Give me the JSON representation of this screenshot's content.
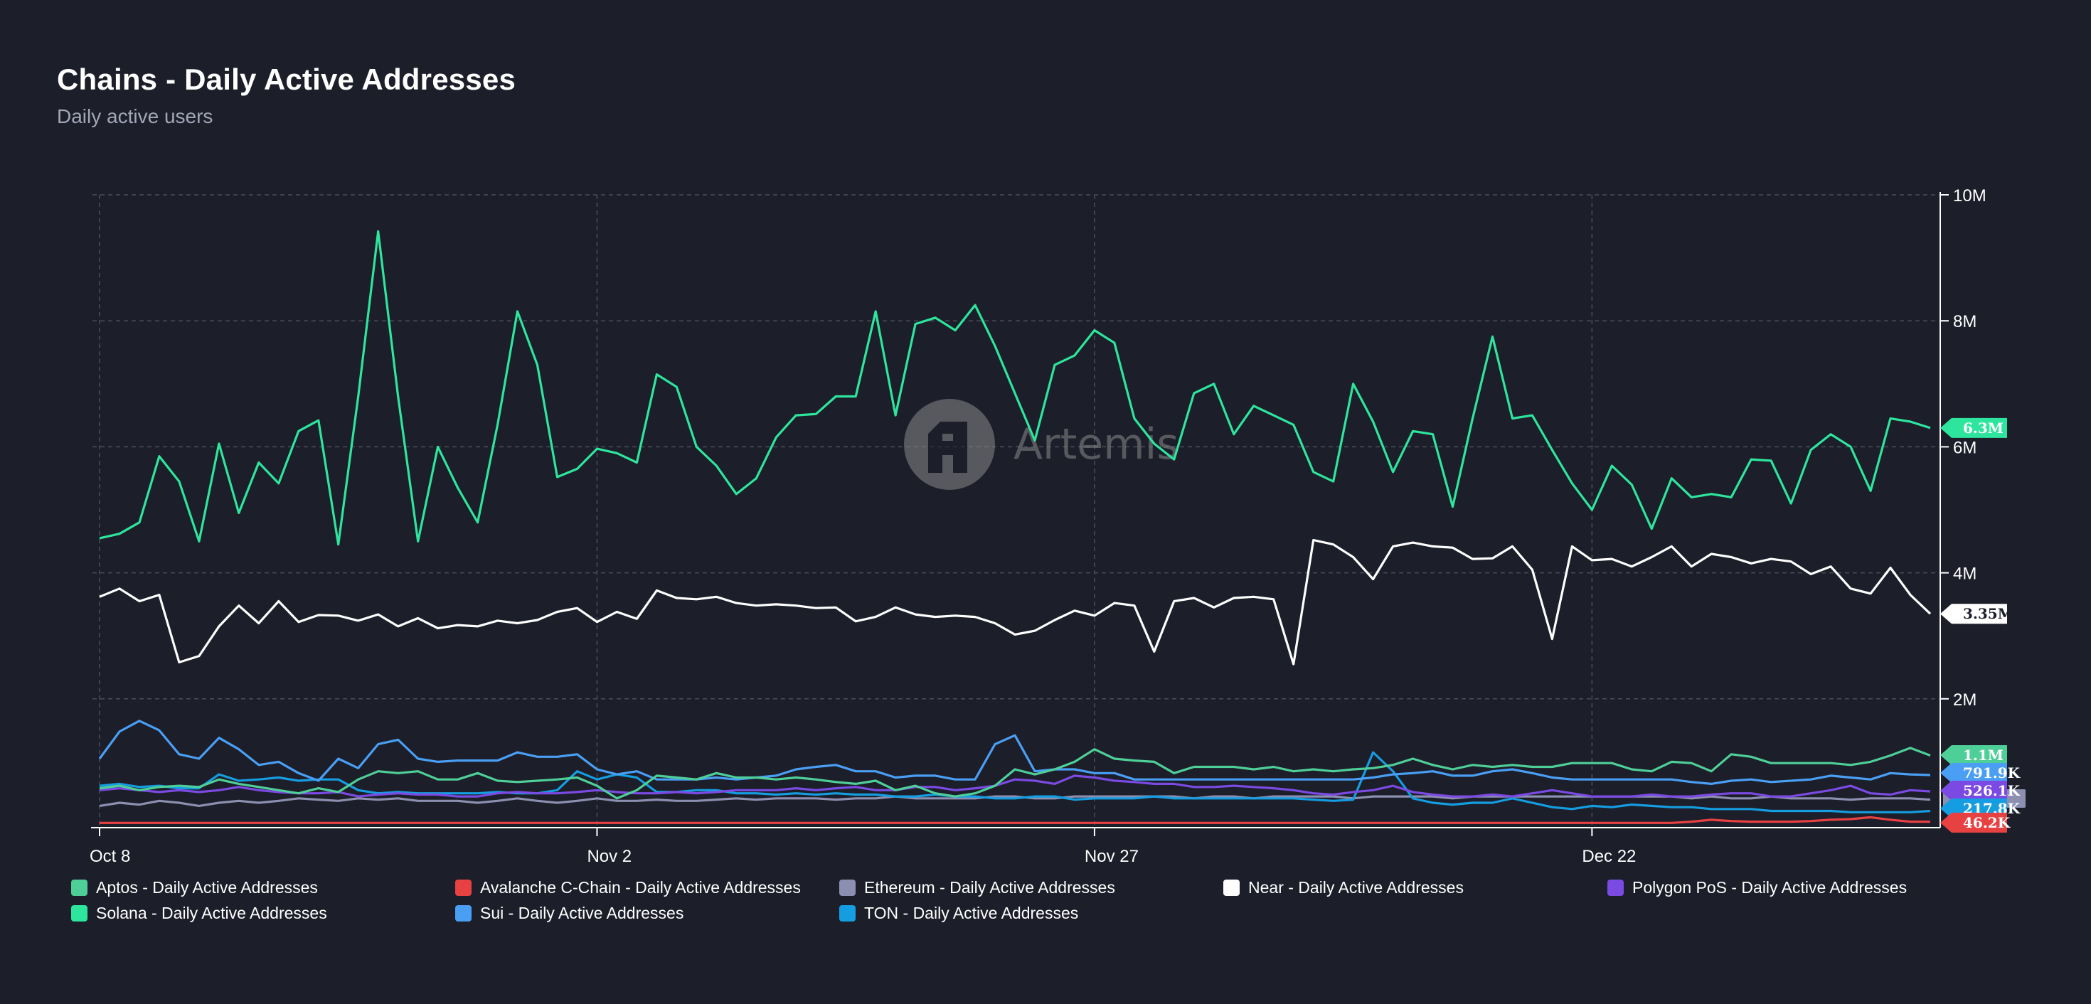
{
  "header": {
    "title": "Chains - Daily Active Addresses",
    "subtitle": "Daily active users"
  },
  "watermark": {
    "text": "Artemis"
  },
  "chart_data": {
    "type": "line",
    "title": "Chains - Daily Active Addresses",
    "subtitle": "Daily active users",
    "xlabel": "",
    "ylabel": "",
    "grid": true,
    "ylim": [
      0,
      10000000
    ],
    "x_ticks": [
      {
        "label": "Oct 8",
        "index": 0
      },
      {
        "label": "Nov 2",
        "index": 25
      },
      {
        "label": "Nov 27",
        "index": 50
      },
      {
        "label": "Dec 22",
        "index": 75
      }
    ],
    "y_ticks": [
      {
        "label": "10M",
        "value": 10000000
      },
      {
        "label": "8M",
        "value": 8000000
      },
      {
        "label": "6M",
        "value": 6000000
      },
      {
        "label": "4M",
        "value": 4000000
      },
      {
        "label": "2M",
        "value": 2000000
      }
    ],
    "series": [
      {
        "name": "Solana - Daily Active Addresses",
        "color": "#2ee59d",
        "end_label": "6.3M",
        "values": [
          4.55,
          4.62,
          4.8,
          5.85,
          5.45,
          4.5,
          6.05,
          4.95,
          5.75,
          5.42,
          6.25,
          6.42,
          4.45,
          6.8,
          9.42,
          6.8,
          4.5,
          6.0,
          5.35,
          4.8,
          6.35,
          8.15,
          7.3,
          5.52,
          5.65,
          5.97,
          5.9,
          5.75,
          7.15,
          6.95,
          6.0,
          5.7,
          5.25,
          5.5,
          6.15,
          6.5,
          6.52,
          6.8,
          6.8,
          8.15,
          6.5,
          7.95,
          8.05,
          7.85,
          8.25,
          7.6,
          6.85,
          6.1,
          7.3,
          7.45,
          7.85,
          7.65,
          6.45,
          6.05,
          5.8,
          6.85,
          7.0,
          6.2,
          6.65,
          6.5,
          6.35,
          5.6,
          5.45,
          7.0,
          6.4,
          5.6,
          6.25,
          6.2,
          5.05,
          6.45,
          7.75,
          6.45,
          6.5,
          5.95,
          5.42,
          5.0,
          5.7,
          5.4,
          4.7,
          5.5,
          5.2,
          5.25,
          5.2,
          5.8,
          5.78,
          5.1,
          5.95,
          6.2,
          6.0,
          5.3,
          6.45,
          6.4,
          6.3
        ]
      },
      {
        "name": "Near - Daily Active Addresses",
        "color": "#ffffff",
        "end_label": "3.35M",
        "values": [
          3.62,
          3.75,
          3.55,
          3.65,
          2.58,
          2.68,
          3.15,
          3.48,
          3.2,
          3.55,
          3.22,
          3.33,
          3.32,
          3.24,
          3.34,
          3.15,
          3.28,
          3.12,
          3.17,
          3.15,
          3.24,
          3.2,
          3.25,
          3.38,
          3.44,
          3.22,
          3.38,
          3.27,
          3.72,
          3.6,
          3.58,
          3.62,
          3.52,
          3.48,
          3.5,
          3.48,
          3.44,
          3.45,
          3.23,
          3.3,
          3.45,
          3.34,
          3.3,
          3.32,
          3.3,
          3.2,
          3.02,
          3.08,
          3.25,
          3.4,
          3.32,
          3.52,
          3.48,
          2.75,
          3.55,
          3.6,
          3.45,
          3.6,
          3.62,
          3.58,
          2.55,
          4.52,
          4.45,
          4.25,
          3.9,
          4.42,
          4.48,
          4.42,
          4.4,
          4.22,
          4.23,
          4.42,
          4.05,
          2.95,
          4.42,
          4.2,
          4.22,
          4.1,
          4.25,
          4.42,
          4.1,
          4.3,
          4.25,
          4.15,
          4.22,
          4.18,
          3.98,
          4.1,
          3.75,
          3.67,
          4.08,
          3.65,
          3.35
        ]
      },
      {
        "name": "Aptos - Daily Active Addresses",
        "color": "#4fcf98",
        "end_label": "1.1M",
        "values": [
          0.58,
          0.62,
          0.55,
          0.6,
          0.62,
          0.6,
          0.72,
          0.65,
          0.6,
          0.55,
          0.5,
          0.58,
          0.52,
          0.72,
          0.85,
          0.82,
          0.85,
          0.72,
          0.72,
          0.82,
          0.7,
          0.68,
          0.7,
          0.72,
          0.75,
          0.62,
          0.42,
          0.55,
          0.78,
          0.75,
          0.72,
          0.82,
          0.75,
          0.75,
          0.72,
          0.75,
          0.72,
          0.68,
          0.65,
          0.7,
          0.55,
          0.62,
          0.5,
          0.45,
          0.5,
          0.62,
          0.88,
          0.8,
          0.88,
          1.0,
          1.2,
          1.05,
          1.02,
          1.0,
          0.82,
          0.92,
          0.92,
          0.92,
          0.88,
          0.92,
          0.85,
          0.88,
          0.85,
          0.88,
          0.9,
          0.95,
          1.05,
          0.95,
          0.88,
          0.95,
          0.92,
          0.95,
          0.92,
          0.92,
          0.98,
          0.98,
          0.98,
          0.88,
          0.85,
          1.0,
          0.98,
          0.85,
          1.12,
          1.08,
          0.98,
          0.98,
          0.98,
          0.98,
          0.95,
          1.0,
          1.1,
          1.22,
          1.1
        ]
      },
      {
        "name": "Sui - Daily Active Addresses",
        "color": "#4a9ff5",
        "end_label": "791.9K",
        "values": [
          1.05,
          1.48,
          1.65,
          1.5,
          1.12,
          1.05,
          1.38,
          1.2,
          0.95,
          1.0,
          0.82,
          0.7,
          1.05,
          0.9,
          1.28,
          1.35,
          1.05,
          1.0,
          1.02,
          1.02,
          1.02,
          1.15,
          1.08,
          1.08,
          1.12,
          0.88,
          0.8,
          0.85,
          0.72,
          0.72,
          0.72,
          0.75,
          0.72,
          0.75,
          0.78,
          0.88,
          0.92,
          0.95,
          0.85,
          0.85,
          0.75,
          0.78,
          0.78,
          0.72,
          0.72,
          1.28,
          1.42,
          0.85,
          0.88,
          0.88,
          0.82,
          0.82,
          0.72,
          0.72,
          0.72,
          0.72,
          0.72,
          0.72,
          0.72,
          0.72,
          0.72,
          0.72,
          0.72,
          0.72,
          0.75,
          0.8,
          0.82,
          0.85,
          0.78,
          0.78,
          0.85,
          0.88,
          0.82,
          0.75,
          0.72,
          0.72,
          0.72,
          0.72,
          0.72,
          0.72,
          0.68,
          0.65,
          0.7,
          0.72,
          0.68,
          0.7,
          0.72,
          0.78,
          0.75,
          0.72,
          0.82,
          0.8,
          0.79
        ]
      },
      {
        "name": "Polygon PoS - Daily Active Addresses",
        "color": "#7b4ae2",
        "end_label": "526.1K",
        "values": [
          0.55,
          0.58,
          0.55,
          0.52,
          0.55,
          0.52,
          0.55,
          0.6,
          0.55,
          0.52,
          0.5,
          0.5,
          0.52,
          0.45,
          0.48,
          0.5,
          0.48,
          0.48,
          0.45,
          0.45,
          0.5,
          0.52,
          0.5,
          0.5,
          0.52,
          0.55,
          0.52,
          0.5,
          0.5,
          0.52,
          0.5,
          0.52,
          0.55,
          0.55,
          0.55,
          0.58,
          0.55,
          0.58,
          0.6,
          0.55,
          0.55,
          0.6,
          0.6,
          0.55,
          0.58,
          0.62,
          0.72,
          0.7,
          0.65,
          0.78,
          0.75,
          0.7,
          0.68,
          0.65,
          0.65,
          0.6,
          0.6,
          0.62,
          0.6,
          0.58,
          0.55,
          0.5,
          0.48,
          0.52,
          0.55,
          0.62,
          0.52,
          0.48,
          0.45,
          0.45,
          0.48,
          0.45,
          0.5,
          0.55,
          0.5,
          0.45,
          0.45,
          0.45,
          0.48,
          0.45,
          0.45,
          0.48,
          0.5,
          0.5,
          0.45,
          0.45,
          0.5,
          0.55,
          0.62,
          0.5,
          0.48,
          0.55,
          0.53
        ]
      },
      {
        "name": "Ethereum - Daily Active Addresses",
        "color": "#8c8fb0",
        "end_label": "",
        "values": [
          0.3,
          0.35,
          0.32,
          0.38,
          0.35,
          0.3,
          0.35,
          0.38,
          0.35,
          0.38,
          0.42,
          0.4,
          0.38,
          0.42,
          0.4,
          0.42,
          0.38,
          0.38,
          0.38,
          0.35,
          0.38,
          0.42,
          0.38,
          0.35,
          0.38,
          0.42,
          0.38,
          0.38,
          0.4,
          0.38,
          0.38,
          0.4,
          0.42,
          0.4,
          0.42,
          0.42,
          0.42,
          0.4,
          0.42,
          0.42,
          0.45,
          0.42,
          0.42,
          0.42,
          0.42,
          0.45,
          0.45,
          0.42,
          0.42,
          0.45,
          0.45,
          0.45,
          0.45,
          0.45,
          0.45,
          0.42,
          0.45,
          0.45,
          0.42,
          0.45,
          0.45,
          0.45,
          0.45,
          0.42,
          0.45,
          0.45,
          0.45,
          0.45,
          0.42,
          0.45,
          0.45,
          0.45,
          0.45,
          0.45,
          0.45,
          0.45,
          0.45,
          0.45,
          0.45,
          0.45,
          0.42,
          0.45,
          0.42,
          0.42,
          0.45,
          0.42,
          0.42,
          0.42,
          0.4,
          0.42,
          0.42,
          0.42,
          0.4
        ]
      },
      {
        "name": "TON - Daily Active Addresses",
        "color": "#159de1",
        "end_label": "217.8K",
        "values": [
          0.62,
          0.65,
          0.6,
          0.62,
          0.58,
          0.58,
          0.8,
          0.7,
          0.72,
          0.75,
          0.7,
          0.72,
          0.72,
          0.55,
          0.5,
          0.52,
          0.5,
          0.5,
          0.5,
          0.5,
          0.52,
          0.5,
          0.5,
          0.55,
          0.85,
          0.72,
          0.8,
          0.75,
          0.52,
          0.52,
          0.55,
          0.55,
          0.5,
          0.5,
          0.48,
          0.5,
          0.48,
          0.5,
          0.48,
          0.48,
          0.45,
          0.45,
          0.48,
          0.45,
          0.45,
          0.42,
          0.42,
          0.45,
          0.45,
          0.4,
          0.42,
          0.42,
          0.42,
          0.45,
          0.42,
          0.42,
          0.42,
          0.42,
          0.42,
          0.42,
          0.42,
          0.4,
          0.38,
          0.4,
          1.15,
          0.85,
          0.42,
          0.35,
          0.32,
          0.35,
          0.35,
          0.42,
          0.35,
          0.28,
          0.25,
          0.3,
          0.28,
          0.32,
          0.3,
          0.28,
          0.28,
          0.25,
          0.25,
          0.25,
          0.22,
          0.22,
          0.22,
          0.22,
          0.2,
          0.2,
          0.2,
          0.2,
          0.22
        ]
      },
      {
        "name": "Avalanche C-Chain - Daily Active Addresses",
        "color": "#e84142",
        "end_label": "46.2K",
        "values": [
          0.03,
          0.03,
          0.03,
          0.03,
          0.03,
          0.03,
          0.03,
          0.03,
          0.03,
          0.03,
          0.03,
          0.03,
          0.03,
          0.03,
          0.03,
          0.03,
          0.03,
          0.03,
          0.03,
          0.03,
          0.03,
          0.03,
          0.03,
          0.03,
          0.03,
          0.03,
          0.03,
          0.03,
          0.03,
          0.03,
          0.03,
          0.03,
          0.03,
          0.03,
          0.03,
          0.03,
          0.03,
          0.03,
          0.03,
          0.03,
          0.03,
          0.03,
          0.03,
          0.03,
          0.03,
          0.03,
          0.03,
          0.03,
          0.03,
          0.03,
          0.03,
          0.03,
          0.03,
          0.03,
          0.03,
          0.03,
          0.03,
          0.03,
          0.03,
          0.03,
          0.03,
          0.03,
          0.03,
          0.03,
          0.03,
          0.03,
          0.03,
          0.03,
          0.03,
          0.03,
          0.03,
          0.03,
          0.03,
          0.03,
          0.03,
          0.03,
          0.03,
          0.03,
          0.03,
          0.03,
          0.05,
          0.08,
          0.06,
          0.05,
          0.05,
          0.05,
          0.06,
          0.08,
          0.09,
          0.12,
          0.08,
          0.05,
          0.05
        ]
      }
    ],
    "legend": [
      {
        "label": "Aptos - Daily Active Addresses",
        "color": "#4fcf98"
      },
      {
        "label": "Avalanche C-Chain - Daily Active Addresses",
        "color": "#e84142"
      },
      {
        "label": "Ethereum - Daily Active Addresses",
        "color": "#8c8fb0"
      },
      {
        "label": "Near - Daily Active Addresses",
        "color": "#ffffff"
      },
      {
        "label": "Polygon PoS - Daily Active Addresses",
        "color": "#7b4ae2"
      },
      {
        "label": "Solana - Daily Active Addresses",
        "color": "#2ee59d"
      },
      {
        "label": "Sui - Daily Active Addresses",
        "color": "#4a9ff5"
      },
      {
        "label": "TON - Daily Active Addresses",
        "color": "#159de1"
      }
    ]
  }
}
